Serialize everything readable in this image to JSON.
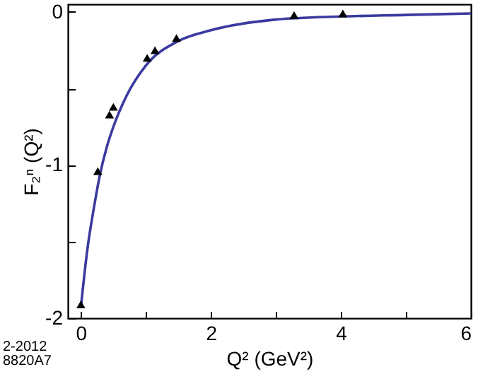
{
  "chart_data": {
    "type": "scatter",
    "xlabel": "Q² (GeV²)",
    "ylabel": "F₂ⁿ (Q²)",
    "annotations": [
      "2-2012",
      "8820A7"
    ],
    "xlim": [
      -0.2,
      6
    ],
    "ylim": [
      -2,
      0.05
    ],
    "xticks": [
      0,
      {
        "value": 1,
        "label": null
      },
      2,
      {
        "value": 3,
        "label": null
      },
      4,
      {
        "value": 5,
        "label": null
      },
      6
    ],
    "yticks": [
      -2,
      {
        "value": -1.5,
        "label": null
      },
      -1,
      {
        "value": -0.5,
        "label": null
      },
      0
    ],
    "grid": false,
    "series": [
      {
        "marker": "triangle",
        "color": "#000000",
        "x": [
          0,
          0.26,
          0.44,
          0.5,
          1.02,
          1.14,
          1.47,
          3.28,
          4.03
        ],
        "values": [
          -1.91,
          -1.04,
          -0.67,
          -0.62,
          -0.3,
          -0.25,
          -0.17,
          -0.02,
          -0.01
        ]
      },
      {
        "type": "line",
        "marker": "none",
        "color": "#3a3aa0",
        "x": [
          0,
          0.1,
          0.2,
          0.3,
          0.4,
          0.5,
          0.7,
          1.0,
          1.5,
          2,
          3,
          4,
          5,
          6
        ],
        "values": [
          -1.93,
          -1.55,
          -1.28,
          -1.05,
          -0.88,
          -0.75,
          -0.55,
          -0.35,
          -0.19,
          -0.12,
          -0.05,
          -0.03,
          -0.02,
          -0.01
        ]
      }
    ]
  }
}
